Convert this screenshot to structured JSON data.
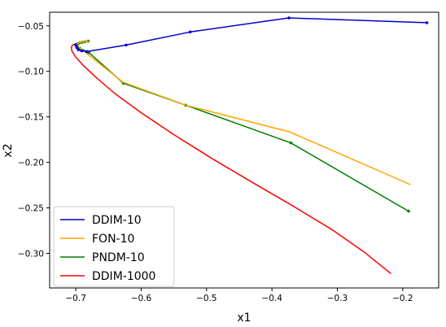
{
  "chart_data": {
    "type": "line",
    "title": "",
    "xlabel": "x1",
    "ylabel": "x2",
    "xlim": [
      -0.74,
      -0.145
    ],
    "ylim": [
      -0.338,
      -0.035
    ],
    "xticks": [
      -0.7,
      -0.6,
      -0.5,
      -0.4,
      -0.3,
      -0.2
    ],
    "xtick_labels": [
      "−0.7",
      "−0.6",
      "−0.5",
      "−0.4",
      "−0.3",
      "−0.2"
    ],
    "yticks": [
      -0.05,
      -0.1,
      -0.15,
      -0.2,
      -0.25,
      -0.3
    ],
    "ytick_labels": [
      "−0.05",
      "−0.10",
      "−0.15",
      "−0.20",
      "−0.25",
      "−0.30"
    ],
    "grid": false,
    "legend_position": "lower-left",
    "series": [
      {
        "name": "DDIM-10",
        "color": "#0000cc",
        "markers": true,
        "x": [
          -0.163,
          -0.374,
          -0.525,
          -0.623,
          -0.683,
          -0.691,
          -0.696,
          -0.698,
          -0.699,
          -0.7
        ],
        "y": [
          -0.0465,
          -0.0413,
          -0.0567,
          -0.0711,
          -0.0783,
          -0.0775,
          -0.0762,
          -0.0742,
          -0.0725,
          -0.0708
        ]
      },
      {
        "name": "FON-10",
        "color": "#ffa500",
        "markers": false,
        "x": [
          -0.188,
          -0.373,
          -0.532,
          -0.628,
          -0.68,
          -0.694,
          -0.698,
          -0.697,
          -0.695,
          -0.69,
          -0.685,
          -0.68
        ],
        "y": [
          -0.2245,
          -0.1665,
          -0.1372,
          -0.1118,
          -0.0823,
          -0.0741,
          -0.0712,
          -0.0695,
          -0.0683,
          -0.0677,
          -0.0672,
          -0.0668
        ]
      },
      {
        "name": "PNDM-10",
        "color": "#008000",
        "markers": true,
        "x": [
          -0.191,
          -0.371,
          -0.532,
          -0.627,
          -0.68,
          -0.694,
          -0.698,
          -0.697,
          -0.694,
          -0.69,
          -0.686,
          -0.681
        ],
        "y": [
          -0.2536,
          -0.1786,
          -0.1372,
          -0.1131,
          -0.0793,
          -0.0745,
          -0.0718,
          -0.0699,
          -0.0686,
          -0.068,
          -0.0674,
          -0.0668
        ]
      },
      {
        "name": "DDIM-1000",
        "color": "#ff0000",
        "markers": false,
        "x": [
          -0.218,
          -0.26,
          -0.31,
          -0.37,
          -0.43,
          -0.49,
          -0.55,
          -0.6,
          -0.64,
          -0.67,
          -0.69,
          -0.701,
          -0.706,
          -0.707,
          -0.705,
          -0.7,
          -0.695,
          -0.69,
          -0.686
        ],
        "y": [
          -0.3223,
          -0.298,
          -0.273,
          -0.247,
          -0.222,
          -0.1965,
          -0.1695,
          -0.1455,
          -0.1245,
          -0.106,
          -0.0925,
          -0.0835,
          -0.0775,
          -0.0738,
          -0.0712,
          -0.0698,
          -0.0688,
          -0.0681,
          -0.0677
        ]
      }
    ]
  }
}
